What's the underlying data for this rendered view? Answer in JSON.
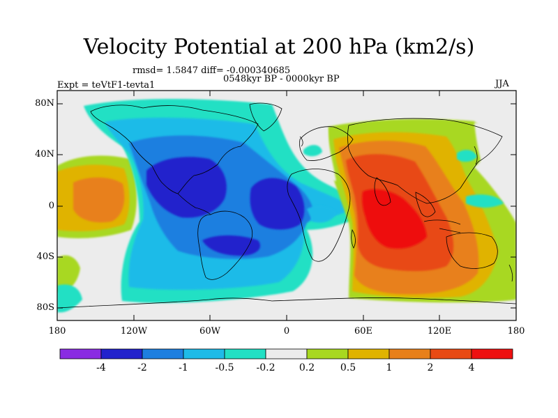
{
  "title": "Velocity Potential at 200 hPa (km2/s)",
  "stats": "rmsd= 1.5847 diff= -0.000340685",
  "period": "0548kyr BP - 0000kyr BP",
  "experiment": "Expt = teVtF1-tevta1",
  "season": "JJA",
  "lat_labels": [
    "80N",
    "40N",
    "0",
    "40S",
    "80S"
  ],
  "lon_labels": [
    "180",
    "120W",
    "60W",
    "0",
    "60E",
    "120E",
    "180"
  ],
  "colorbar": {
    "labels": [
      "-4",
      "-2",
      "-1",
      "-0.5",
      "-0.2",
      "0.2",
      "0.5",
      "1",
      "2",
      "4"
    ],
    "colors": [
      "#8a2be2",
      "#2222cc",
      "#1e7fe0",
      "#1fbbe8",
      "#22e0c4",
      "#ececec",
      "#a8d820",
      "#e0b300",
      "#e8801a",
      "#e84a14",
      "#ee1111"
    ]
  },
  "colors": {
    "background": "#ececec",
    "land": "#ececec",
    "coast": "#000000"
  }
}
